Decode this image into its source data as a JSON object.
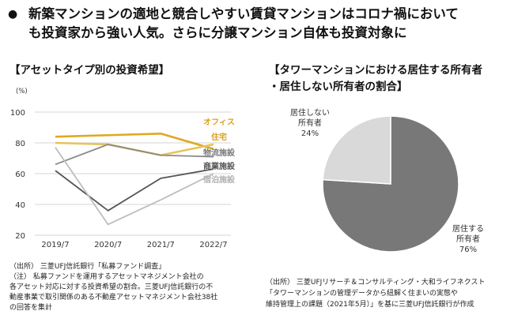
{
  "headline": {
    "line1": "新築マンションの適地と競合しやすい賃貸マンションはコロナ禍において",
    "line2": "も投資家から強い人気。さらに分譲マンション自体も投資対象に"
  },
  "left_title": "【アセットタイプ別の投資希望】",
  "right_title_line1": "【タワーマンションにおける居住する所有者",
  "right_title_line2": "・居住しない所有者の割合】",
  "left_notes": [
    "（出所） 三菱UFJ信託銀行「私募ファンド調査」",
    "（注） 私募ファンドを運用するアセットマネジメント会社の",
    "各アセット対応に対する投資希望の割合。三菱UFJ信託銀行の不",
    "動産事業で取引関係のある不動産アセットマネジメント会社38社",
    "の回答を集計"
  ],
  "right_notes": [
    "（出所） 三菱UFJリサーチ＆コンサルティング・大和ライフネクスト",
    "「タワーマンションの管理データから紐解く住まいの実態や",
    "維持管理上の課題（2021年5月）」を基に三菱UFJ信託銀行が作成"
  ],
  "chart_data": [
    {
      "type": "line",
      "unit_label": "(%)",
      "categories": [
        "2019/7",
        "2020/7",
        "2021/7",
        "2022/7"
      ],
      "ylim": [
        20,
        100
      ],
      "yticks": [
        20,
        40,
        60,
        80,
        100
      ],
      "series": [
        {
          "name": "オフィス",
          "values": [
            84,
            85,
            86,
            76
          ],
          "color": "#e0a820",
          "label_color": "#d9a020"
        },
        {
          "name": "住宅",
          "values": [
            80,
            79,
            72,
            79
          ],
          "color": "#e8c35a",
          "label_color": "#d9a020"
        },
        {
          "name": "物流施設",
          "values": [
            66,
            79,
            72,
            71
          ],
          "color": "#8a8a8a",
          "label_color": "#7a7a7a"
        },
        {
          "name": "商業施設",
          "values": [
            62,
            36,
            57,
            63
          ],
          "color": "#555555",
          "label_color": "#555555"
        },
        {
          "name": "宿泊施設",
          "values": [
            77,
            27,
            43,
            60
          ],
          "color": "#bdbdbd",
          "label_color": "#b0b0b0"
        }
      ]
    },
    {
      "type": "pie",
      "slices": [
        {
          "label_line1": "居住する",
          "label_line2": "所有者",
          "value": 76,
          "value_text": "76%",
          "color": "#787878"
        },
        {
          "label_line1": "居住しない",
          "label_line2": "所有者",
          "value": 24,
          "value_text": "24%",
          "color": "#d9d9d9"
        }
      ]
    }
  ]
}
